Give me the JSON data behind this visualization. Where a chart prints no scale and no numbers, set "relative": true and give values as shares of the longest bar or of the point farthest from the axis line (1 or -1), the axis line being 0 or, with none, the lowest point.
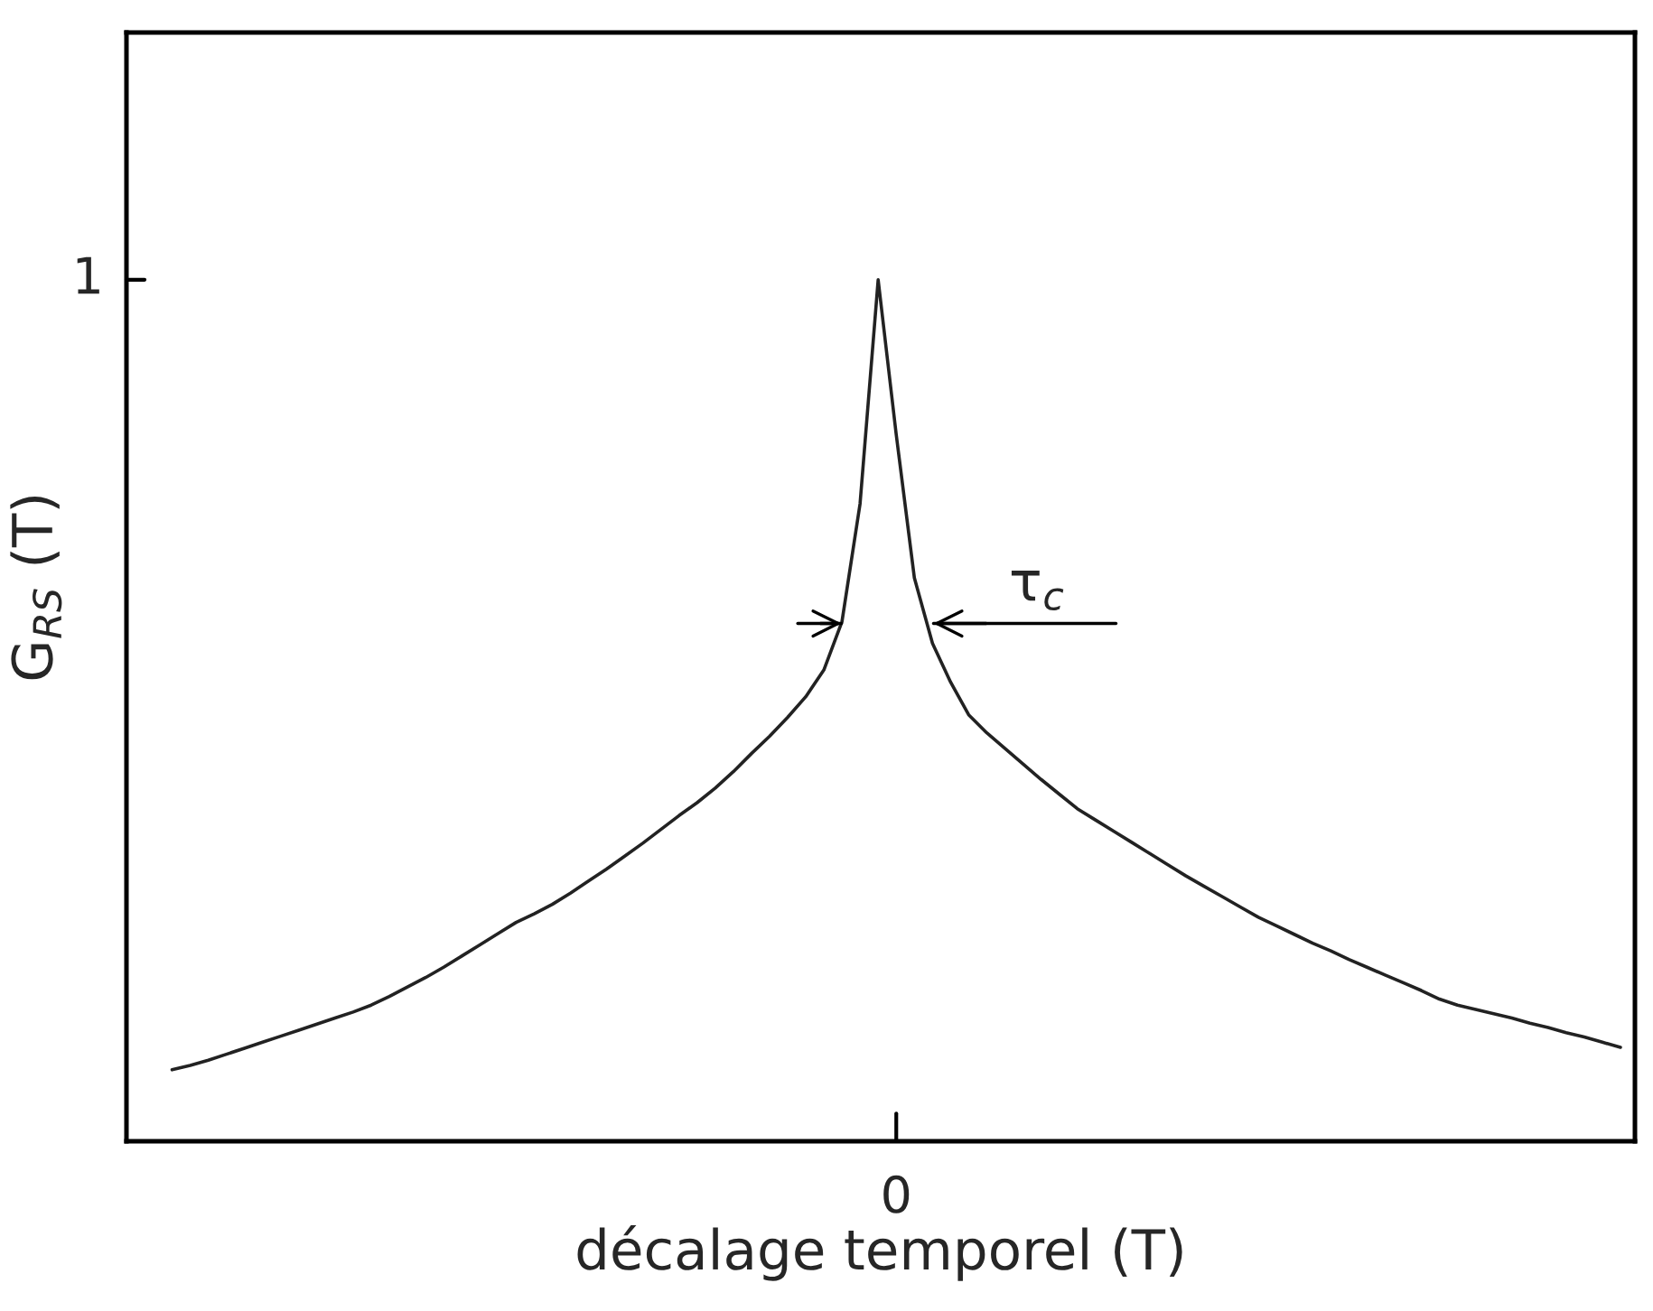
{
  "chart_data": {
    "type": "line",
    "relative": true,
    "xlabel": "décalage temporel (T)",
    "ylabel": "G$_{RS}$ (T)",
    "annotations": [
      "τ$_{c}$",
      "1",
      "0"
    ],
    "categories": [
      null,
      null,
      null,
      null,
      null,
      null,
      null,
      null,
      null,
      null,
      null,
      null,
      null,
      null,
      null,
      null,
      null,
      null,
      null,
      null,
      null,
      null,
      null,
      null,
      null,
      null,
      null,
      null,
      null,
      null,
      null,
      null,
      null,
      null,
      null,
      null,
      null,
      null,
      null,
      null,
      null,
      null,
      null,
      null,
      null,
      null,
      null,
      null,
      null,
      null,
      null,
      null,
      null,
      null,
      null,
      null,
      null,
      null,
      null,
      null,
      null,
      null,
      null,
      null,
      null,
      null,
      null,
      null,
      null,
      null,
      null,
      null,
      null,
      null,
      null,
      null,
      null,
      null,
      null,
      null,
      null
    ],
    "series": [
      {
        "color": "#222222",
        "values": [
          0.083,
          0.088,
          0.094,
          0.101,
          0.108,
          0.115,
          0.122,
          0.129,
          0.136,
          0.143,
          0.15,
          0.158,
          0.168,
          0.179,
          0.19,
          0.202,
          0.215,
          0.228,
          0.241,
          0.254,
          0.264,
          0.275,
          0.288,
          0.302,
          0.316,
          0.331,
          0.346,
          0.362,
          0.378,
          0.393,
          0.41,
          0.429,
          0.45,
          0.47,
          0.492,
          0.516,
          0.547,
          0.603,
          0.74,
          1.0,
          0.82,
          0.654,
          0.578,
          0.533,
          0.495,
          0.474,
          0.456,
          0.438,
          0.42,
          0.403,
          0.386,
          0.373,
          0.36,
          0.347,
          0.334,
          0.321,
          0.308,
          0.296,
          0.284,
          0.272,
          0.26,
          0.25,
          0.24,
          0.23,
          0.221,
          0.211,
          0.202,
          0.193,
          0.184,
          0.175,
          0.165,
          0.158,
          0.153,
          0.148,
          0.143,
          0.137,
          0.132,
          0.126,
          0.121,
          0.115,
          0.109
        ]
      }
    ],
    "marker": "none",
    "line_style": "solid"
  }
}
